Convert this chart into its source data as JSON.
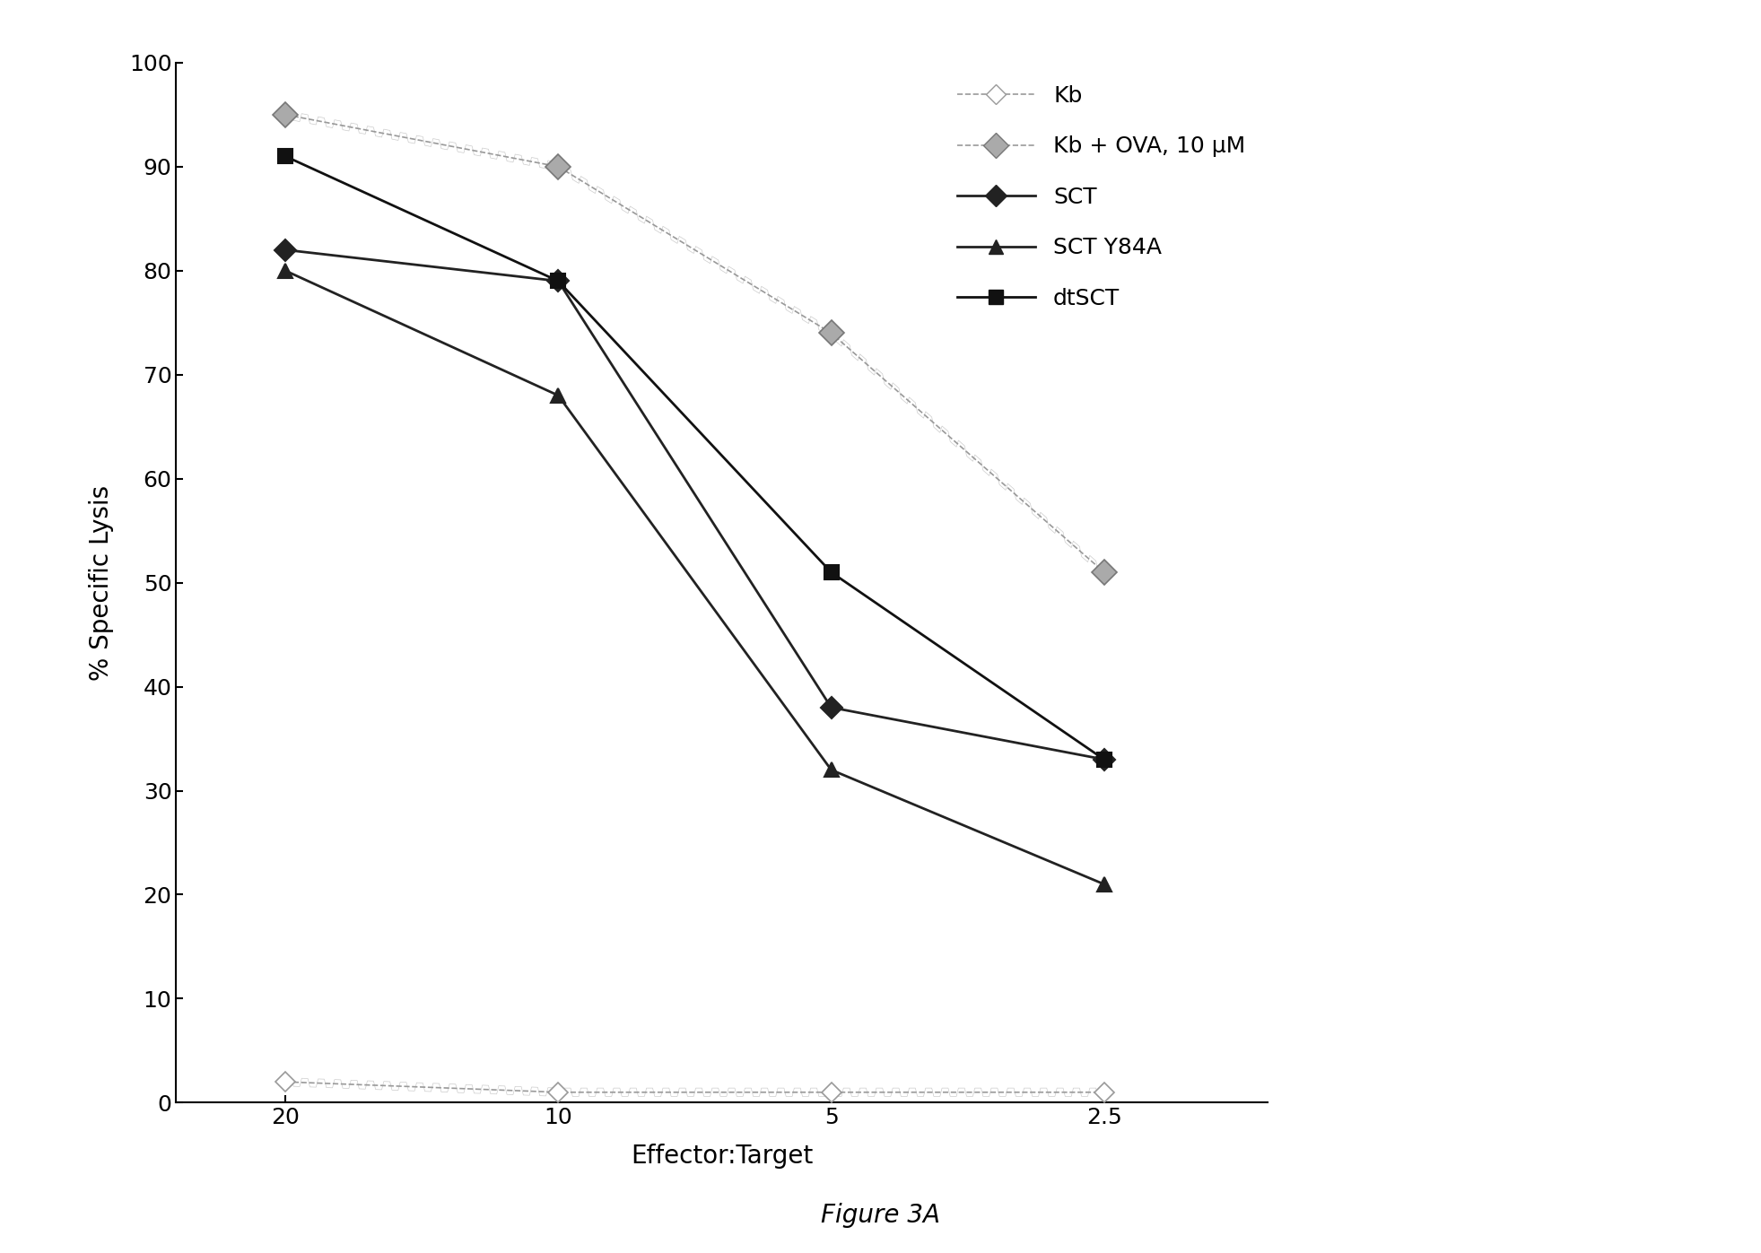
{
  "x_positions": [
    0,
    1,
    2,
    3
  ],
  "x_labels": [
    "20",
    "10",
    "5",
    "2.5"
  ],
  "series": [
    {
      "name": "Kb",
      "y": [
        2,
        1,
        1,
        1
      ],
      "color": "#999999",
      "linestyle": "dashed",
      "marker": "D",
      "marker_facecolor": "white",
      "marker_edgecolor": "#999999",
      "marker_size": 11,
      "linewidth": 1.2,
      "hatch_line": true
    },
    {
      "name": "Kb + OVA, 10 μM",
      "y": [
        95,
        90,
        74,
        51
      ],
      "color": "#999999",
      "linestyle": "dashed",
      "marker": "D",
      "marker_facecolor": "#aaaaaa",
      "marker_edgecolor": "#777777",
      "marker_size": 14,
      "linewidth": 1.2,
      "hatch_line": true
    },
    {
      "name": "SCT",
      "y": [
        82,
        79,
        38,
        33
      ],
      "color": "#222222",
      "linestyle": "solid",
      "marker": "D",
      "marker_facecolor": "#222222",
      "marker_edgecolor": "#222222",
      "marker_size": 12,
      "linewidth": 2.0,
      "hatch_line": false
    },
    {
      "name": "SCT Y84A",
      "y": [
        80,
        68,
        32,
        21
      ],
      "color": "#222222",
      "linestyle": "solid",
      "marker": "^",
      "marker_facecolor": "#222222",
      "marker_edgecolor": "#222222",
      "marker_size": 12,
      "linewidth": 2.0,
      "hatch_line": false
    },
    {
      "name": "dtSCT",
      "y": [
        91,
        79,
        51,
        33
      ],
      "color": "#111111",
      "linestyle": "solid",
      "marker": "s",
      "marker_facecolor": "#111111",
      "marker_edgecolor": "#111111",
      "marker_size": 12,
      "linewidth": 2.0,
      "hatch_line": false
    }
  ],
  "xlabel": "Effector:Target",
  "ylabel": "% Specific Lysis",
  "ylim": [
    0,
    100
  ],
  "yticks": [
    0,
    10,
    20,
    30,
    40,
    50,
    60,
    70,
    80,
    90,
    100
  ],
  "figure_label": "Figure 3A",
  "background_color": "#ffffff",
  "axis_fontsize": 20,
  "tick_fontsize": 18,
  "legend_fontsize": 18,
  "caption_fontsize": 20
}
